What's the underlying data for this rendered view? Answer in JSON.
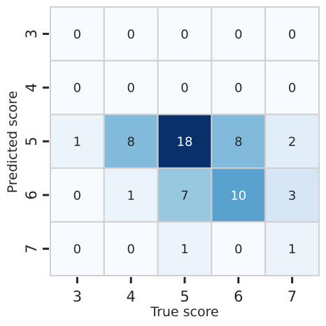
{
  "chart_data": {
    "type": "heatmap",
    "title": "",
    "xlabel": "True score",
    "ylabel": "Predicted score",
    "x_categories": [
      "3",
      "4",
      "5",
      "6",
      "7"
    ],
    "y_categories": [
      "3",
      "4",
      "5",
      "6",
      "7"
    ],
    "values": [
      [
        0,
        0,
        0,
        0,
        0
      ],
      [
        0,
        0,
        0,
        0,
        0
      ],
      [
        1,
        8,
        18,
        8,
        2
      ],
      [
        0,
        1,
        7,
        10,
        3
      ],
      [
        0,
        0,
        1,
        0,
        1
      ]
    ],
    "color_scale": "Blues",
    "vmin": 0,
    "vmax": 18,
    "colorbar": false,
    "annotations": true,
    "colors": {
      "low": "#f7fbff",
      "high": "#08306b",
      "grid_line": "#d0d0d0",
      "text_dark": "#262626",
      "text_light": "#ffffff"
    }
  }
}
